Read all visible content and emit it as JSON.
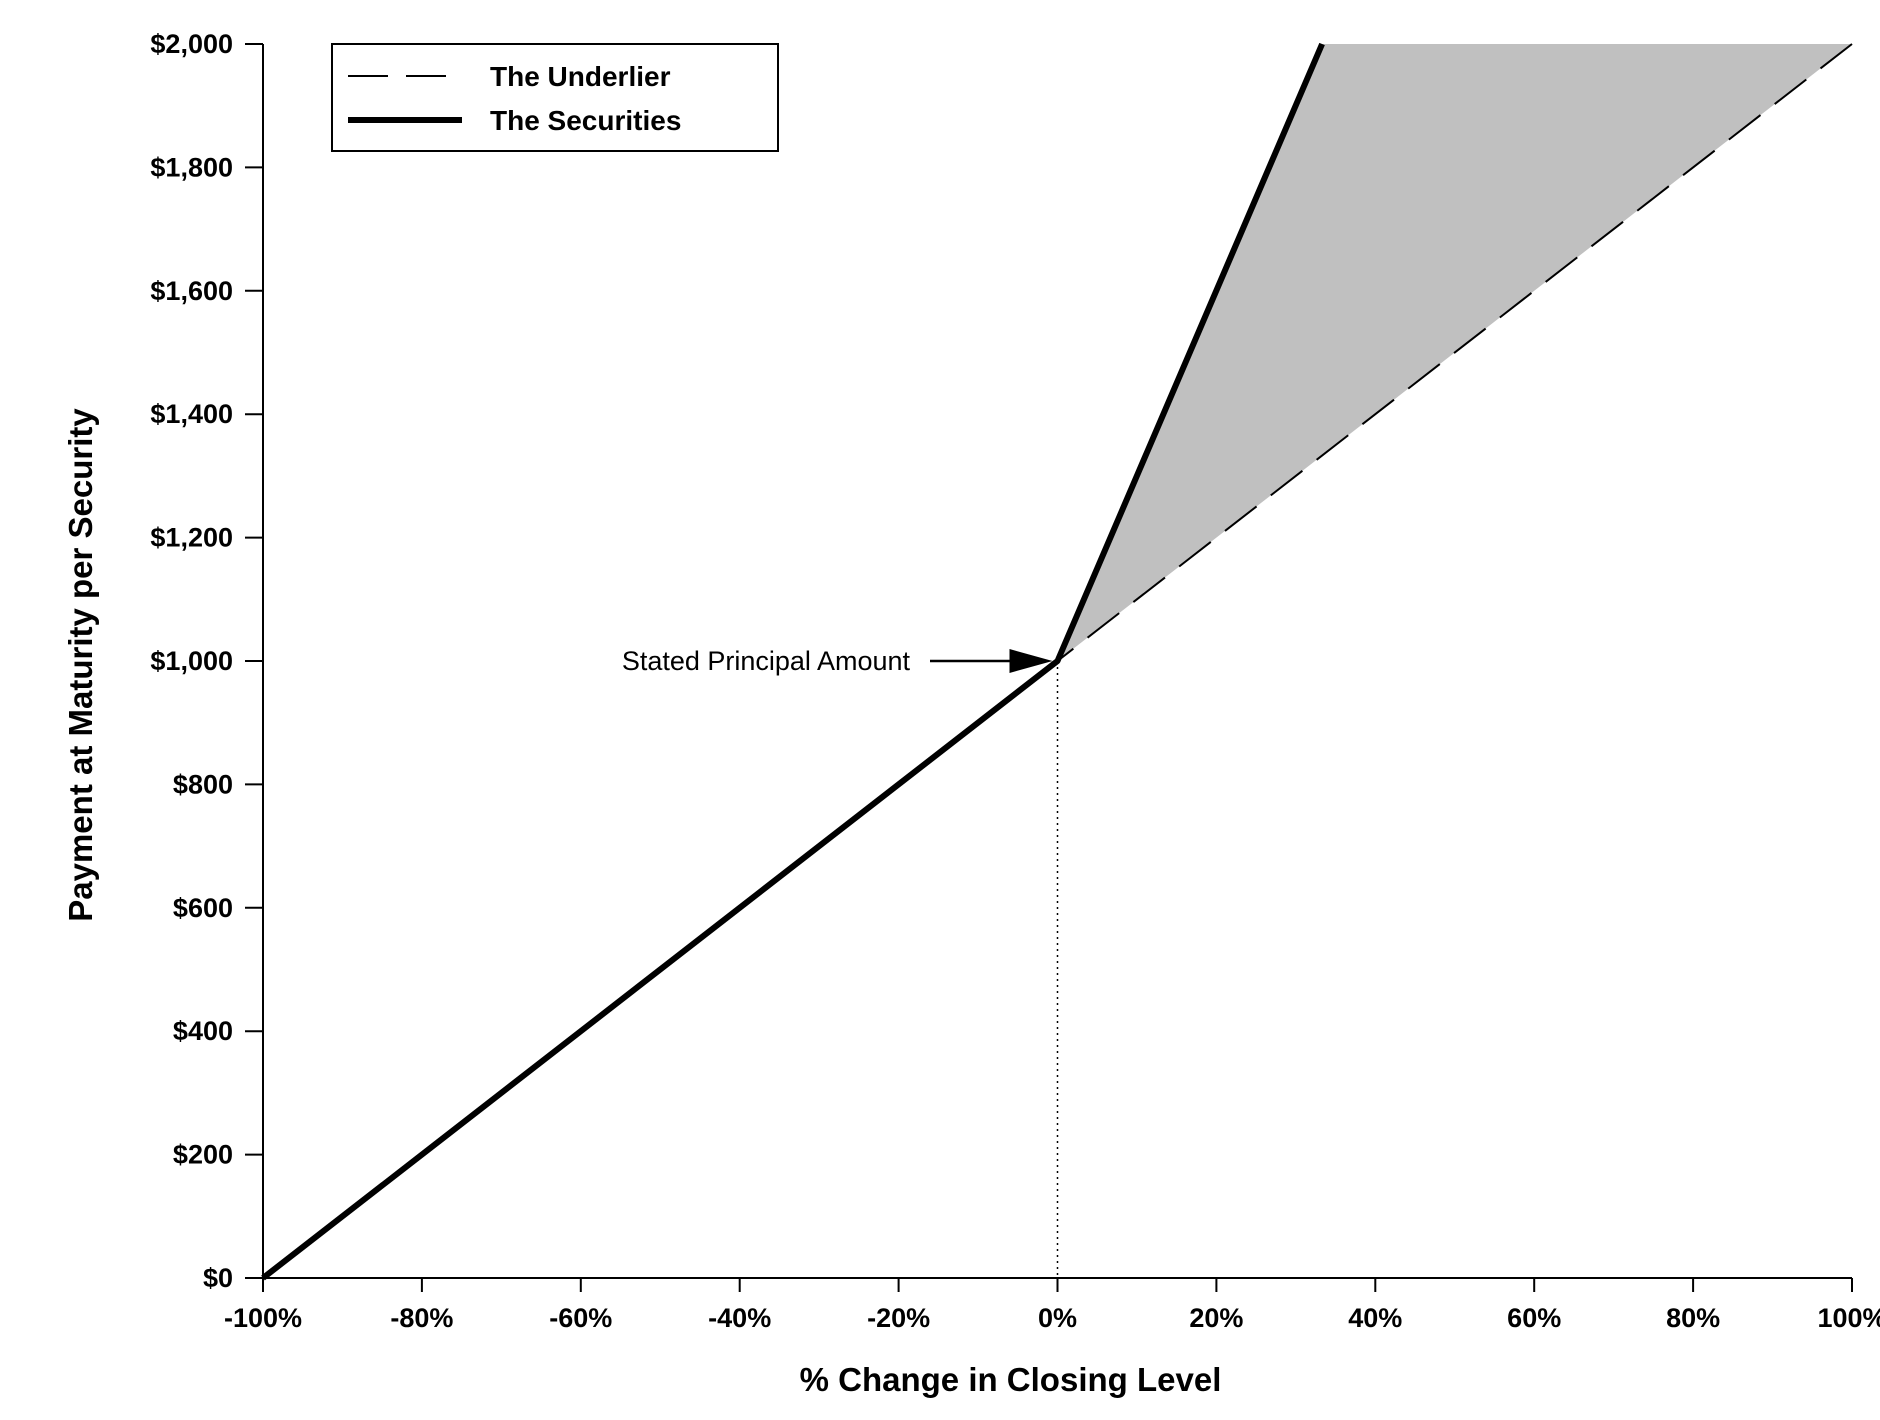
{
  "chart_data": {
    "type": "line",
    "xlabel": "% Change in Closing Level",
    "ylabel": "Payment at Maturity per Security",
    "xlim": [
      -100,
      100
    ],
    "ylim": [
      0,
      2000
    ],
    "x_ticks": [
      -100,
      -80,
      -60,
      -40,
      -20,
      0,
      20,
      40,
      60,
      80,
      100
    ],
    "x_tick_labels": [
      "-100%",
      "-80%",
      "-60%",
      "-40%",
      "-20%",
      "0%",
      "20%",
      "40%",
      "60%",
      "80%",
      "100%"
    ],
    "y_ticks": [
      0,
      200,
      400,
      600,
      800,
      1000,
      1200,
      1400,
      1600,
      1800,
      2000
    ],
    "y_tick_labels": [
      "$0",
      "$200",
      "$400",
      "$600",
      "$800",
      "$1,000",
      "$1,200",
      "$1,400",
      "$1,600",
      "$1,800",
      "$2,000"
    ],
    "grid": false,
    "legend_position": "top-left",
    "series": [
      {
        "name": "The Underlier",
        "style": "dashed",
        "color": "#000000",
        "x": [
          -100,
          0,
          100
        ],
        "y": [
          0,
          1000,
          2000
        ]
      },
      {
        "name": "The Securities",
        "style": "solid-thick",
        "color": "#000000",
        "x": [
          -100,
          0,
          33.3
        ],
        "y": [
          0,
          1000,
          2000
        ]
      }
    ],
    "shaded_region": {
      "color": "#c0c0c0",
      "x": [
        0,
        33.3,
        100
      ],
      "y": [
        1000,
        2000,
        2000
      ]
    },
    "annotations": [
      {
        "text": "Stated Principal Amount",
        "x": 0,
        "y": 1000,
        "arrow": true,
        "position": "left"
      }
    ]
  }
}
